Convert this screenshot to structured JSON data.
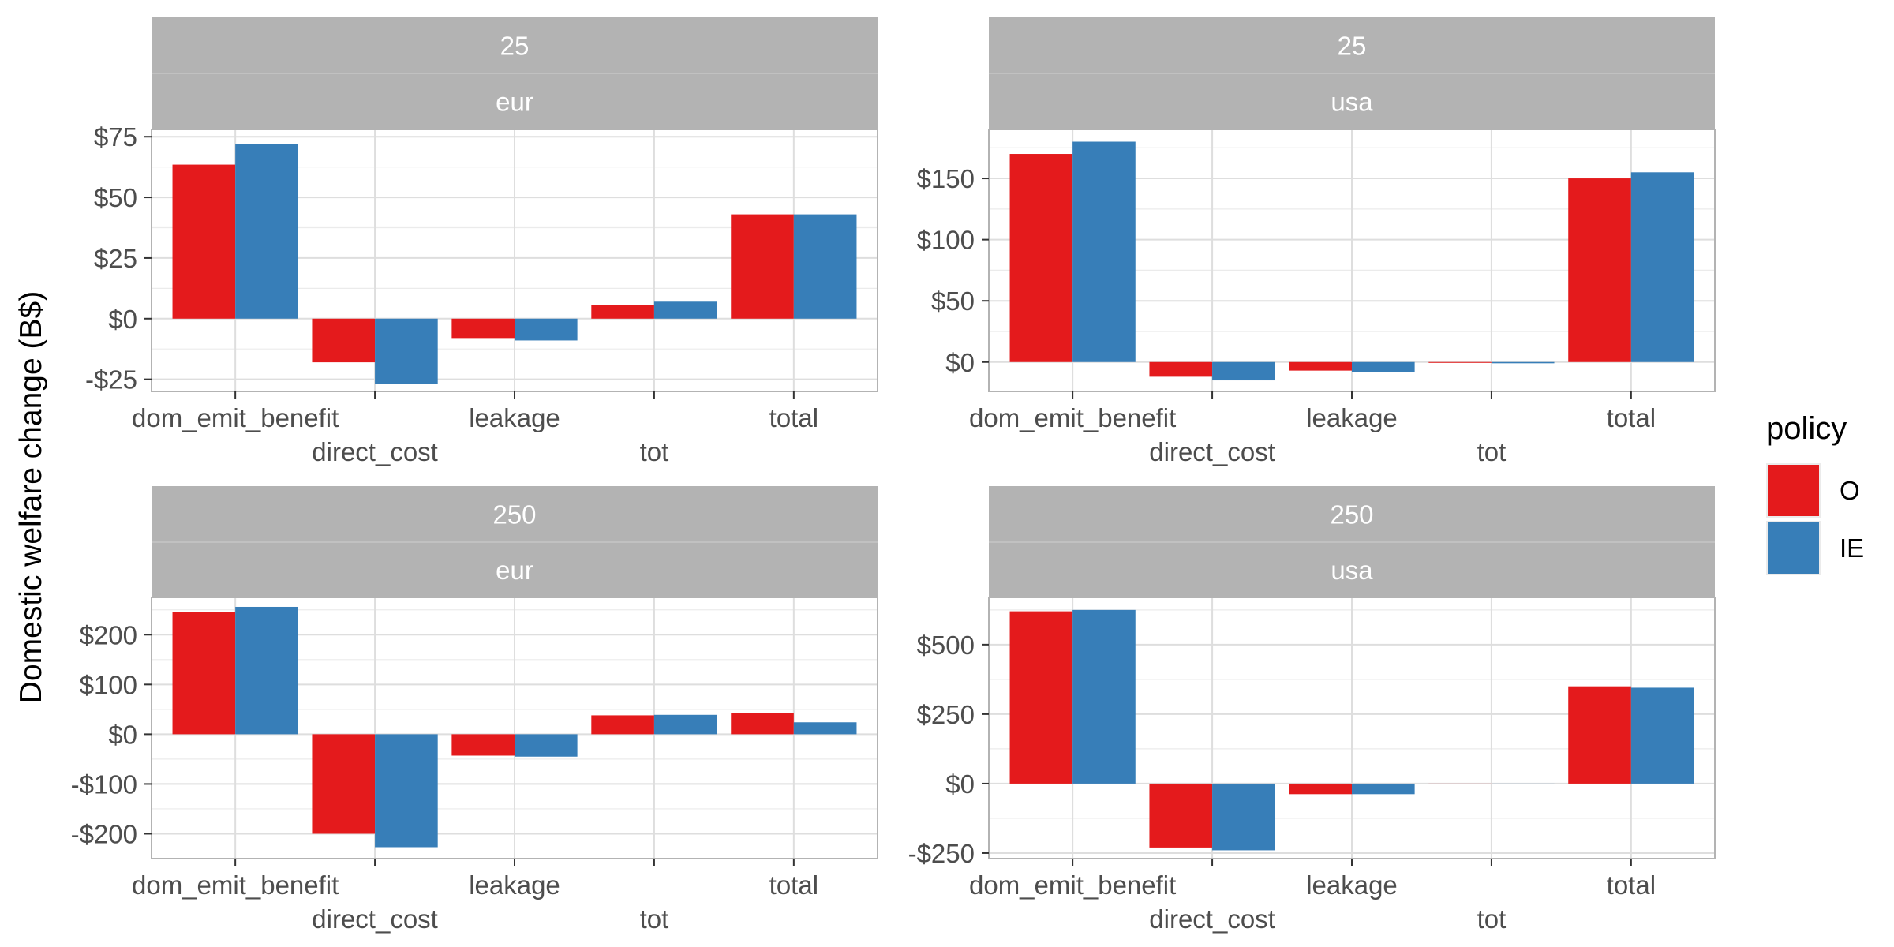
{
  "chart_data": {
    "type": "bar",
    "ylabel": "Domestic welfare change (B$)",
    "xlabel": "",
    "categories": [
      "dom_emit_benefit",
      "direct_cost",
      "leakage",
      "tot",
      "total"
    ],
    "legend": {
      "title": "policy",
      "placement": "right",
      "entries": [
        {
          "name": "O",
          "color": "#e41a1c"
        },
        {
          "name": "IE",
          "color": "#377eb8"
        }
      ]
    },
    "grid": true,
    "panels": [
      {
        "strip_top": "25",
        "strip_bottom": "eur",
        "ylim": [
          -30,
          78
        ],
        "yticks": [
          -25,
          0,
          25,
          50,
          75
        ],
        "ytick_labels": [
          "-$25",
          "$0",
          "$25",
          "$50",
          "$75"
        ],
        "series": [
          {
            "name": "O",
            "values": [
              63.5,
              -18,
              -8,
              5.5,
              43
            ]
          },
          {
            "name": "IE",
            "values": [
              72,
              -27,
              -9,
              7,
              43
            ]
          }
        ]
      },
      {
        "strip_top": "25",
        "strip_bottom": "usa",
        "ylim": [
          -24,
          190
        ],
        "yticks": [
          0,
          50,
          100,
          150
        ],
        "ytick_labels": [
          "$0",
          "$50",
          "$100",
          "$150"
        ],
        "series": [
          {
            "name": "O",
            "values": [
              170,
              -12,
              -7,
              -0.5,
              150
            ]
          },
          {
            "name": "IE",
            "values": [
              180,
              -15,
              -8,
              -1,
              155
            ]
          }
        ]
      },
      {
        "strip_top": "250",
        "strip_bottom": "eur",
        "ylim": [
          -250,
          275
        ],
        "yticks": [
          -200,
          -100,
          0,
          100,
          200
        ],
        "ytick_labels": [
          "-$200",
          "-$100",
          "$0",
          "$100",
          "$200"
        ],
        "series": [
          {
            "name": "O",
            "values": [
              246,
              -200,
              -43,
              38,
              42
            ]
          },
          {
            "name": "IE",
            "values": [
              256,
              -227,
              -45,
              39,
              24
            ]
          }
        ]
      },
      {
        "strip_top": "250",
        "strip_bottom": "usa",
        "ylim": [
          -270,
          670
        ],
        "yticks": [
          -250,
          0,
          250,
          500
        ],
        "ytick_labels": [
          "-$250",
          "$0",
          "$250",
          "$500"
        ],
        "series": [
          {
            "name": "O",
            "values": [
              620,
              -230,
              -38,
              -2,
              350
            ]
          },
          {
            "name": "IE",
            "values": [
              625,
              -240,
              -38,
              -3,
              345
            ]
          }
        ]
      }
    ]
  }
}
